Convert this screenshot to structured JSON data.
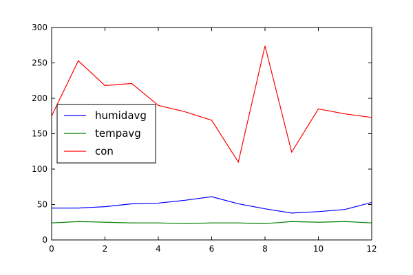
{
  "chart_data": {
    "type": "line",
    "title": "",
    "xlabel": "",
    "ylabel": "",
    "xlim": [
      0,
      12
    ],
    "ylim": [
      0,
      300
    ],
    "x_ticks": [
      0,
      2,
      4,
      6,
      8,
      10,
      12
    ],
    "y_ticks": [
      0,
      50,
      100,
      150,
      200,
      250,
      300
    ],
    "grid": false,
    "legend_position": "center-left",
    "x": [
      0,
      1,
      2,
      3,
      4,
      5,
      6,
      7,
      8,
      9,
      10,
      11,
      12
    ],
    "series": [
      {
        "name": "humidavg",
        "color": "#0000ff",
        "values": [
          45,
          45,
          47,
          51,
          52,
          56,
          61,
          51,
          44,
          38,
          40,
          43,
          53
        ]
      },
      {
        "name": "tempavg",
        "color": "#008000",
        "values": [
          24,
          26,
          25,
          24,
          24,
          23,
          24,
          24,
          23,
          26,
          25,
          26,
          24
        ]
      },
      {
        "name": "con",
        "color": "#ff0000",
        "values": [
          175,
          253,
          218,
          221,
          190,
          181,
          169,
          110,
          274,
          124,
          185,
          178,
          173
        ]
      }
    ]
  }
}
